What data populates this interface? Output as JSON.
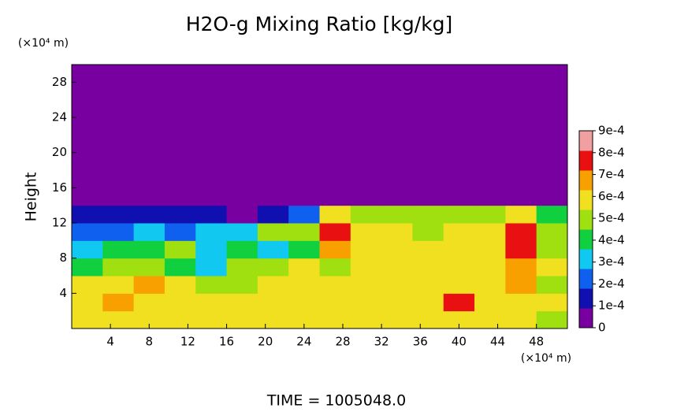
{
  "chart_data": {
    "type": "heatmap",
    "title": "H2O-g Mixing Ratio [kg/kg]",
    "y_label": "Height",
    "x_unit": "(×10⁴ m)",
    "y_unit": "(×10⁴ m)",
    "footer": "TIME = 1005048.0",
    "xlim": [
      0,
      51.2
    ],
    "ylim": [
      0,
      30
    ],
    "xticks": [
      4,
      8,
      12,
      16,
      20,
      24,
      28,
      32,
      36,
      40,
      44,
      48
    ],
    "yticks": [
      4,
      8,
      12,
      16,
      20,
      24,
      28
    ],
    "x_edges": [
      0,
      3.2,
      6.4,
      9.6,
      12.8,
      16,
      19.2,
      22.4,
      25.6,
      28.8,
      32,
      35.2,
      38.4,
      41.6,
      44.8,
      48,
      51.2
    ],
    "y_edges": [
      0,
      2,
      4,
      6,
      8,
      10,
      12,
      14,
      16,
      18,
      20,
      22,
      24,
      26,
      28,
      30
    ],
    "z": [
      [
        0.0006,
        0.0006,
        0.0006,
        0.0006,
        0.0006,
        0.0006,
        0.0006,
        0.0006,
        0.0006,
        0.0006,
        0.0006,
        0.0006,
        0.0006,
        0.0006,
        0.0006,
        0.0005
      ],
      [
        0.0006,
        0.0007,
        0.0006,
        0.0006,
        0.0006,
        0.0006,
        0.0006,
        0.0006,
        0.0006,
        0.0006,
        0.0006,
        0.0006,
        0.0008,
        0.0006,
        0.0006,
        0.0006
      ],
      [
        0.0006,
        0.0006,
        0.0007,
        0.0006,
        0.0005,
        0.0005,
        0.0006,
        0.0006,
        0.0006,
        0.0006,
        0.0006,
        0.0006,
        0.0006,
        0.0006,
        0.0007,
        0.0005
      ],
      [
        0.0004,
        0.0005,
        0.0005,
        0.0004,
        0.0003,
        0.0005,
        0.0005,
        0.0006,
        0.0005,
        0.0006,
        0.0006,
        0.0006,
        0.0006,
        0.0006,
        0.0007,
        0.0006
      ],
      [
        0.0003,
        0.0004,
        0.0004,
        0.0005,
        0.0003,
        0.0004,
        0.0003,
        0.0004,
        0.0007,
        0.0006,
        0.0006,
        0.0006,
        0.0006,
        0.0006,
        0.0008,
        0.0005
      ],
      [
        0.0002,
        0.0002,
        0.0003,
        0.0002,
        0.0003,
        0.0003,
        0.0005,
        0.0005,
        0.0008,
        0.0006,
        0.0006,
        0.0005,
        0.0006,
        0.0006,
        0.0008,
        0.0005
      ],
      [
        0.0001,
        0.0001,
        0.0001,
        0.0001,
        0.0001,
        0,
        0.0001,
        0.0002,
        0.0006,
        0.0005,
        0.0005,
        0.0005,
        0.0005,
        0.0005,
        0.0006,
        0.0004
      ],
      [
        0,
        0,
        0,
        0,
        0,
        0,
        0,
        0,
        0,
        0,
        0,
        0,
        0,
        0,
        0,
        0
      ],
      [
        0,
        0,
        0,
        0,
        0,
        0,
        0,
        0,
        0,
        0,
        0,
        0,
        0,
        0,
        0,
        0
      ],
      [
        0,
        0,
        0,
        0,
        0,
        0,
        0,
        0,
        0,
        0,
        0,
        0,
        0,
        0,
        0,
        0
      ],
      [
        0,
        0,
        0,
        0,
        0,
        0,
        0,
        0,
        0,
        0,
        0,
        0,
        0,
        0,
        0,
        0
      ],
      [
        0,
        0,
        0,
        0,
        0,
        0,
        0,
        0,
        0,
        0,
        0,
        0,
        0,
        0,
        0,
        0
      ],
      [
        0,
        0,
        0,
        0,
        0,
        0,
        0,
        0,
        0,
        0,
        0,
        0,
        0,
        0,
        0,
        0
      ],
      [
        0,
        0,
        0,
        0,
        0,
        0,
        0,
        0,
        0,
        0,
        0,
        0,
        0,
        0,
        0,
        0
      ],
      [
        0,
        0,
        0,
        0,
        0,
        0,
        0,
        0,
        0,
        0,
        0,
        0,
        0,
        0,
        0,
        0
      ]
    ],
    "zlim": [
      0,
      0.0009
    ],
    "zticks": [
      0,
      {
        "value": 0.0001,
        "label": "1e-4"
      },
      {
        "value": 0.0002,
        "label": "2e-4"
      },
      {
        "value": 0.0003,
        "label": "3e-4"
      },
      {
        "value": 0.0004,
        "label": "4e-4"
      },
      {
        "value": 0.0005,
        "label": "5e-4"
      },
      {
        "value": 0.0006,
        "label": "6e-4"
      },
      {
        "value": 0.0007,
        "label": "7e-4"
      },
      {
        "value": 0.0008,
        "label": "8e-4"
      },
      {
        "value": 0.0009,
        "label": "9e-4"
      }
    ],
    "colorscale": [
      "#7800a0",
      "#1010b0",
      "#1060f0",
      "#10c8f0",
      "#10d040",
      "#a0e010",
      "#f0e020",
      "#f8a000",
      "#e81010",
      "#f0a0a0"
    ]
  }
}
